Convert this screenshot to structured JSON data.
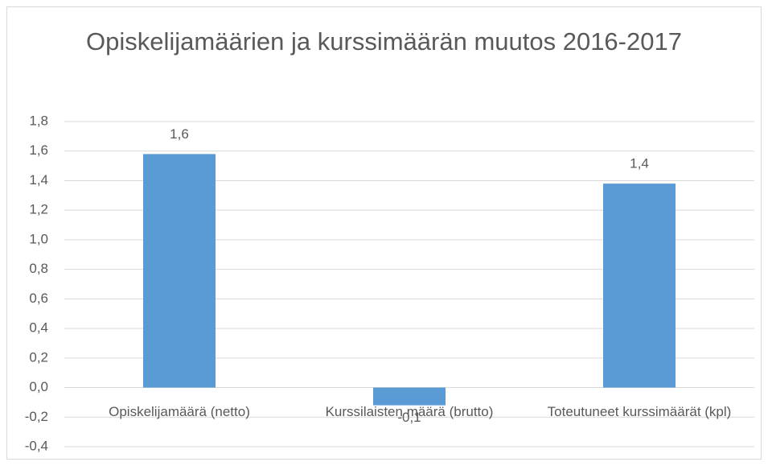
{
  "chart_data": {
    "type": "bar",
    "title": "Opiskelijamäärien ja kurssimäärän muutos 2016-2017",
    "categories": [
      "Opiskelijamäärä (netto)",
      "Kurssilaisten määrä (brutto)",
      "Toteutuneet kurssimäärät (kpl)"
    ],
    "values": [
      1.58,
      -0.12,
      1.38
    ],
    "value_labels": [
      "1,6",
      "-0,1",
      "1,4"
    ],
    "color": "#5b9bd5",
    "ylim": [
      -0.4,
      1.8
    ],
    "yticks": [
      {
        "value": -0.4,
        "label": "-0,4"
      },
      {
        "value": -0.2,
        "label": "-0,2"
      },
      {
        "value": 0,
        "label": "0,0"
      },
      {
        "value": 0.2,
        "label": "0,2"
      },
      {
        "value": 0.4,
        "label": "0,4"
      },
      {
        "value": 0.6,
        "label": "0,6"
      },
      {
        "value": 0.8,
        "label": "0,8"
      },
      {
        "value": 1.0,
        "label": "1,0"
      },
      {
        "value": 1.2,
        "label": "1,2"
      },
      {
        "value": 1.4,
        "label": "1,4"
      },
      {
        "value": 1.6,
        "label": "1,6"
      },
      {
        "value": 1.8,
        "label": "1,8"
      }
    ],
    "grid": true
  }
}
